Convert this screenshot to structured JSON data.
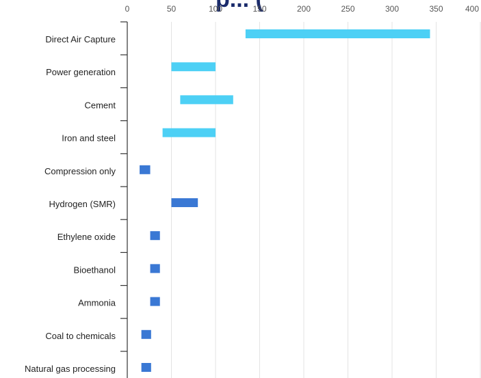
{
  "chart_data": {
    "type": "bar",
    "orientation": "horizontal",
    "style": "floating-range",
    "title_fragment": "p... (",
    "xlim": [
      0,
      400
    ],
    "x_ticks": [
      0,
      50,
      100,
      150,
      200,
      250,
      300,
      350,
      400
    ],
    "x_tick_labels": [
      "0",
      "50",
      "100",
      "150",
      "200",
      "250",
      "300",
      "350",
      "400"
    ],
    "grid": true,
    "categories": [
      "Direct Air Capture",
      "Power generation",
      "Cement",
      "Iron and steel",
      "Compression only",
      "Hydrogen (SMR)",
      "Ethylene oxide",
      "Bioethanol",
      "Ammonia",
      "Coal to chemicals",
      "Natural gas processing"
    ],
    "ranges": [
      {
        "low": 134,
        "high": 343,
        "color": "#4dd0f5"
      },
      {
        "low": 50,
        "high": 100,
        "color": "#4dd0f5"
      },
      {
        "low": 60,
        "high": 120,
        "color": "#4dd0f5"
      },
      {
        "low": 40,
        "high": 100,
        "color": "#4dd0f5"
      },
      {
        "low": 14,
        "high": 26,
        "color": "#3a78d4"
      },
      {
        "low": 50,
        "high": 80,
        "color": "#3a78d4"
      },
      {
        "low": 26,
        "high": 37,
        "color": "#3a78d4"
      },
      {
        "low": 26,
        "high": 37,
        "color": "#3a78d4"
      },
      {
        "low": 26,
        "high": 37,
        "color": "#3a78d4"
      },
      {
        "low": 16,
        "high": 27,
        "color": "#3a78d4"
      },
      {
        "low": 16,
        "high": 27,
        "color": "#3a78d4"
      }
    ]
  }
}
